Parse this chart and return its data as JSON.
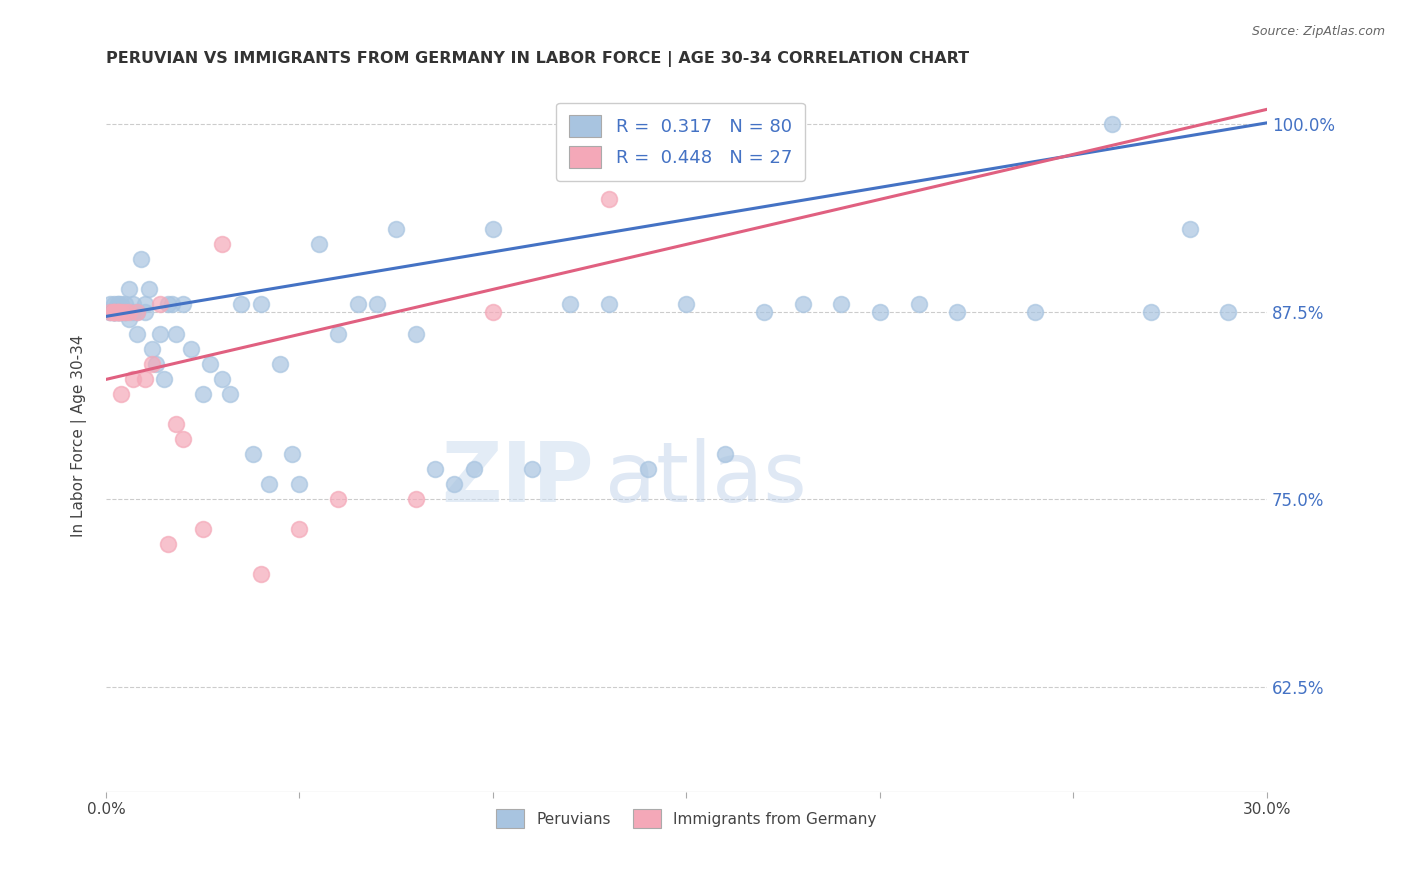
{
  "title": "PERUVIAN VS IMMIGRANTS FROM GERMANY IN LABOR FORCE | AGE 30-34 CORRELATION CHART",
  "source": "Source: ZipAtlas.com",
  "ylabel": "In Labor Force | Age 30-34",
  "xlim": [
    0.0,
    0.3
  ],
  "ylim": [
    0.555,
    1.03
  ],
  "yticks": [
    0.625,
    0.75,
    0.875,
    1.0
  ],
  "ytick_labels": [
    "62.5%",
    "75.0%",
    "87.5%",
    "100.0%"
  ],
  "xticks": [
    0.0,
    0.05,
    0.1,
    0.15,
    0.2,
    0.25,
    0.3
  ],
  "xtick_labels": [
    "0.0%",
    "",
    "",
    "",
    "",
    "",
    "30.0%"
  ],
  "blue_R": 0.317,
  "blue_N": 80,
  "pink_R": 0.448,
  "pink_N": 27,
  "blue_color": "#a8c4e0",
  "pink_color": "#f4a8b8",
  "blue_line_color": "#4472c4",
  "pink_line_color": "#e06080",
  "legend_text_color": "#4472c4",
  "watermark_color": "#ccddf0",
  "background_color": "#ffffff",
  "blue_x": [
    0.001,
    0.001,
    0.001,
    0.002,
    0.002,
    0.002,
    0.002,
    0.002,
    0.002,
    0.002,
    0.003,
    0.003,
    0.003,
    0.003,
    0.003,
    0.003,
    0.004,
    0.004,
    0.004,
    0.004,
    0.005,
    0.005,
    0.005,
    0.006,
    0.006,
    0.007,
    0.007,
    0.008,
    0.008,
    0.009,
    0.01,
    0.01,
    0.011,
    0.012,
    0.013,
    0.014,
    0.015,
    0.016,
    0.017,
    0.018,
    0.02,
    0.022,
    0.025,
    0.027,
    0.03,
    0.032,
    0.035,
    0.038,
    0.04,
    0.042,
    0.045,
    0.048,
    0.05,
    0.055,
    0.06,
    0.065,
    0.07,
    0.075,
    0.08,
    0.085,
    0.09,
    0.095,
    0.1,
    0.11,
    0.12,
    0.13,
    0.14,
    0.15,
    0.16,
    0.17,
    0.18,
    0.19,
    0.2,
    0.21,
    0.22,
    0.24,
    0.26,
    0.27,
    0.28,
    0.29
  ],
  "blue_y": [
    0.875,
    0.875,
    0.88,
    0.875,
    0.875,
    0.875,
    0.88,
    0.875,
    0.875,
    0.875,
    0.875,
    0.88,
    0.875,
    0.875,
    0.875,
    0.88,
    0.875,
    0.88,
    0.875,
    0.875,
    0.88,
    0.875,
    0.875,
    0.87,
    0.89,
    0.88,
    0.875,
    0.86,
    0.875,
    0.91,
    0.875,
    0.88,
    0.89,
    0.85,
    0.84,
    0.86,
    0.83,
    0.88,
    0.88,
    0.86,
    0.88,
    0.85,
    0.82,
    0.84,
    0.83,
    0.82,
    0.88,
    0.78,
    0.88,
    0.76,
    0.84,
    0.78,
    0.76,
    0.92,
    0.86,
    0.88,
    0.88,
    0.93,
    0.86,
    0.77,
    0.76,
    0.77,
    0.93,
    0.77,
    0.88,
    0.88,
    0.77,
    0.88,
    0.78,
    0.875,
    0.88,
    0.88,
    0.875,
    0.88,
    0.875,
    0.875,
    1.0,
    0.875,
    0.93,
    0.875
  ],
  "pink_x": [
    0.001,
    0.002,
    0.002,
    0.002,
    0.003,
    0.003,
    0.003,
    0.004,
    0.004,
    0.005,
    0.006,
    0.007,
    0.008,
    0.01,
    0.012,
    0.014,
    0.016,
    0.018,
    0.02,
    0.025,
    0.03,
    0.04,
    0.05,
    0.06,
    0.08,
    0.1,
    0.13
  ],
  "pink_y": [
    0.875,
    0.875,
    0.875,
    0.875,
    0.875,
    0.875,
    0.875,
    0.82,
    0.875,
    0.875,
    0.875,
    0.83,
    0.875,
    0.83,
    0.84,
    0.88,
    0.72,
    0.8,
    0.79,
    0.73,
    0.92,
    0.7,
    0.73,
    0.75,
    0.75,
    0.875,
    0.95
  ]
}
